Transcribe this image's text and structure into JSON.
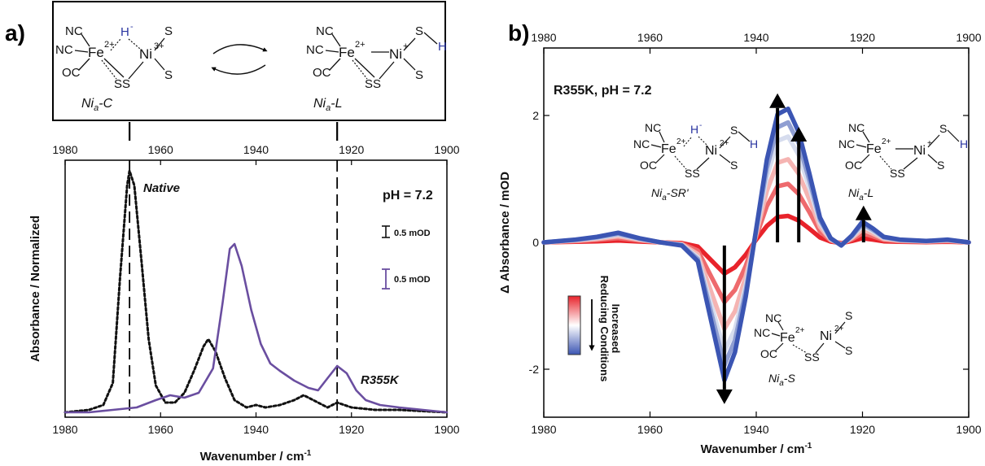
{
  "panels": {
    "a": {
      "letter": "a)",
      "scheme": {
        "left_caption_main": "Ni",
        "left_caption_sub": "a",
        "left_caption_tail": "-C",
        "right_caption_main": "Ni",
        "right_caption_sub": "a",
        "right_caption_tail": "-L"
      }
    },
    "b": {
      "letter": "b)",
      "colorbar_label_line1": "Increased",
      "colorbar_label_line2": "Reducing Conditions",
      "structures": {
        "sr_caption": "Ni",
        "sr_sub": "a",
        "sr_tail": "-SR'",
        "l_caption": "Ni",
        "l_sub": "a",
        "l_tail": "-L",
        "s_caption": "Ni",
        "s_sub": "a",
        "s_tail": "-S"
      }
    }
  },
  "chem": {
    "nc": "NC",
    "oc": "OC",
    "fe": "Fe",
    "fe_charge": "2+",
    "ni": "Ni",
    "ni3": "3+",
    "ni2": "2+",
    "ni1": "+",
    "s": "S",
    "ss": "SS",
    "h": "H",
    "hminus": "H",
    "minus": "-"
  },
  "chart_data": [
    {
      "type": "line",
      "panel": "a",
      "xlabel": "Wavenumber / cm",
      "xlabel_sup": "-1",
      "ylabel": "Absorbance / Normalized",
      "xlim": [
        1980,
        1900
      ],
      "xticks": [
        1980,
        1960,
        1940,
        1920,
        1900
      ],
      "annotations": {
        "native": "Native",
        "ph": "pH = 7.2",
        "scalebar_black": "0.5 mOD",
        "scalebar_purple": "0.5 mOD",
        "r355k": "R355K"
      },
      "dashed_lines_x": [
        1966.5,
        1923
      ],
      "series": [
        {
          "name": "Native",
          "style": "dotted",
          "color": "#111111",
          "points": [
            [
              1980,
              0.0
            ],
            [
              1975,
              0.01
            ],
            [
              1972,
              0.03
            ],
            [
              1970,
              0.12
            ],
            [
              1968.5,
              0.55
            ],
            [
              1967,
              0.93
            ],
            [
              1966.5,
              0.99
            ],
            [
              1965.5,
              0.93
            ],
            [
              1964,
              0.62
            ],
            [
              1962.5,
              0.3
            ],
            [
              1961,
              0.11
            ],
            [
              1959,
              0.04
            ],
            [
              1957,
              0.04
            ],
            [
              1955,
              0.08
            ],
            [
              1953,
              0.17
            ],
            [
              1951,
              0.27
            ],
            [
              1950,
              0.3
            ],
            [
              1948.5,
              0.25
            ],
            [
              1946.5,
              0.14
            ],
            [
              1944.5,
              0.05
            ],
            [
              1942,
              0.02
            ],
            [
              1940,
              0.03
            ],
            [
              1938,
              0.02
            ],
            [
              1935,
              0.03
            ],
            [
              1932,
              0.05
            ],
            [
              1930,
              0.07
            ],
            [
              1928,
              0.05
            ],
            [
              1925,
              0.02
            ],
            [
              1923,
              0.04
            ],
            [
              1920,
              0.02
            ],
            [
              1915,
              0.01
            ],
            [
              1910,
              0.01
            ],
            [
              1900,
              0.0
            ]
          ]
        },
        {
          "name": "R355K",
          "style": "solid",
          "color": "#6a4ea0",
          "points": [
            [
              1980,
              0.0
            ],
            [
              1975,
              0.0
            ],
            [
              1970,
              0.01
            ],
            [
              1965,
              0.02
            ],
            [
              1961,
              0.05
            ],
            [
              1958,
              0.07
            ],
            [
              1955,
              0.06
            ],
            [
              1952,
              0.08
            ],
            [
              1949,
              0.18
            ],
            [
              1947,
              0.45
            ],
            [
              1945.5,
              0.67
            ],
            [
              1944.5,
              0.69
            ],
            [
              1943,
              0.6
            ],
            [
              1941,
              0.42
            ],
            [
              1939,
              0.28
            ],
            [
              1937,
              0.2
            ],
            [
              1935,
              0.17
            ],
            [
              1932,
              0.13
            ],
            [
              1929,
              0.1
            ],
            [
              1927,
              0.09
            ],
            [
              1925,
              0.14
            ],
            [
              1923,
              0.19
            ],
            [
              1921,
              0.16
            ],
            [
              1919,
              0.09
            ],
            [
              1917,
              0.05
            ],
            [
              1914,
              0.03
            ],
            [
              1910,
              0.02
            ],
            [
              1905,
              0.01
            ],
            [
              1900,
              0.0
            ]
          ]
        }
      ]
    },
    {
      "type": "line",
      "panel": "b",
      "title": "R355K, pH = 7.2",
      "xlabel": "Wavenumber / cm",
      "xlabel_sup": "-1",
      "ylabel": "Δ Absorbance / mOD",
      "xlim": [
        1980,
        1900
      ],
      "ylim": [
        -2.7,
        2.7
      ],
      "xticks": [
        1980,
        1960,
        1940,
        1920,
        1900
      ],
      "yticks": [
        -2,
        0,
        2
      ],
      "arrows": [
        {
          "x": 1936,
          "from": 0.0,
          "to": 2.35
        },
        {
          "x": 1932,
          "from": 0.0,
          "to": 1.82
        },
        {
          "x": 1919.8,
          "from": 0.0,
          "to": 0.58
        },
        {
          "x": 1946,
          "from": 0.0,
          "to": -2.55
        }
      ],
      "base_shape": [
        [
          1980,
          0.0
        ],
        [
          1974,
          0.02
        ],
        [
          1970,
          0.04
        ],
        [
          1966,
          0.07
        ],
        [
          1962,
          0.03
        ],
        [
          1958,
          0.0
        ],
        [
          1954,
          -0.02
        ],
        [
          1951,
          -0.12
        ],
        [
          1948.5,
          -0.5
        ],
        [
          1946,
          -0.88
        ],
        [
          1944,
          -0.7
        ],
        [
          1942,
          -0.35
        ],
        [
          1940,
          0.1
        ],
        [
          1938,
          0.6
        ],
        [
          1936,
          0.93
        ],
        [
          1934,
          0.97
        ],
        [
          1932,
          0.8
        ],
        [
          1930,
          0.5
        ],
        [
          1928,
          0.18
        ],
        [
          1926,
          0.03
        ],
        [
          1924,
          -0.02
        ],
        [
          1922,
          0.05
        ],
        [
          1920,
          0.15
        ],
        [
          1918,
          0.1
        ],
        [
          1916,
          0.04
        ],
        [
          1913,
          0.02
        ],
        [
          1908,
          0.01
        ],
        [
          1904,
          0.02
        ],
        [
          1900,
          0.0
        ]
      ],
      "series": [
        {
          "color": "#e8232b",
          "scale_pos": 0.43,
          "scale_neg": 0.56
        },
        {
          "color": "#ee6a6d",
          "scale_pos": 0.95,
          "scale_neg": 1.07
        },
        {
          "color": "#f5b4b2",
          "scale_pos": 1.35,
          "scale_neg": 1.55
        },
        {
          "color": "#d6dcee",
          "scale_pos": 1.72,
          "scale_neg": 1.95
        },
        {
          "color": "#8f9ed2",
          "scale_pos": 1.95,
          "scale_neg": 2.2
        },
        {
          "color": "#3b55b3",
          "scale_pos": 2.17,
          "scale_neg": 2.47
        }
      ]
    }
  ]
}
